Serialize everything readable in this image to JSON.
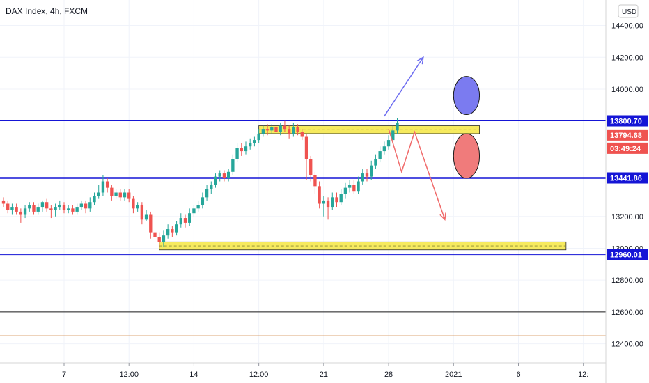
{
  "header": {
    "title": "DAX Index, 4h, FXCM",
    "currency": "USD"
  },
  "colors": {
    "up": "#26a69a",
    "down": "#ef5350",
    "zone_fill": "#f5e642",
    "zone_stroke": "#2a2a2a",
    "blue_line": "#1515d6",
    "black_line": "#1a1a1a",
    "orange_line": "#d08a4a",
    "ellipse_blue": "#7b7bf0",
    "ellipse_red": "#f07b7b",
    "arrow_blue": "#6a6af0",
    "arrow_red": "#f06a6a",
    "tag_blue": "#1515d6",
    "tag_price": "#ef5350"
  },
  "price_tags": {
    "level_high": "13800.70",
    "last_price": "13794.68",
    "countdown": "03:49:24",
    "level_mid": "13441.86",
    "level_low": "12960.01"
  },
  "chart_data": {
    "type": "candlestick",
    "title": "DAX Index, 4h, FXCM",
    "ylim": [
      12280,
      14560
    ],
    "y_ticks": [
      "14400.00",
      "14200.00",
      "14000.00",
      "13200.00",
      "13000.00",
      "12800.00",
      "12600.00",
      "12400.00"
    ],
    "y_tick_values": [
      14400,
      14200,
      14000,
      13200,
      13000,
      12800,
      12600,
      12400
    ],
    "x_ticks": [
      "7",
      "12:00",
      "14",
      "12:00",
      "21",
      "28",
      "2021",
      "6",
      "12:"
    ],
    "x_tick_bars": [
      14,
      29,
      44,
      59,
      74,
      89,
      104,
      119,
      134
    ],
    "bar_count_visible": 140,
    "candles": [
      [
        13300,
        13280,
        13320,
        13260
      ],
      [
        13280,
        13240,
        13300,
        13220
      ],
      [
        13240,
        13260,
        13280,
        13210
      ],
      [
        13260,
        13230,
        13280,
        13210
      ],
      [
        13230,
        13210,
        13250,
        13160
      ],
      [
        13210,
        13250,
        13270,
        13190
      ],
      [
        13250,
        13270,
        13290,
        13230
      ],
      [
        13270,
        13230,
        13290,
        13210
      ],
      [
        13230,
        13260,
        13280,
        13210
      ],
      [
        13260,
        13290,
        13300,
        13230
      ],
      [
        13290,
        13250,
        13310,
        13230
      ],
      [
        13250,
        13240,
        13270,
        13190
      ],
      [
        13240,
        13260,
        13280,
        13200
      ],
      [
        13260,
        13270,
        13300,
        13240
      ],
      [
        13270,
        13240,
        13290,
        13220
      ],
      [
        13240,
        13250,
        13270,
        13220
      ],
      [
        13250,
        13230,
        13270,
        13210
      ],
      [
        13230,
        13260,
        13280,
        13210
      ],
      [
        13260,
        13280,
        13300,
        13240
      ],
      [
        13280,
        13250,
        13300,
        13220
      ],
      [
        13250,
        13290,
        13320,
        13230
      ],
      [
        13290,
        13330,
        13350,
        13270
      ],
      [
        13330,
        13350,
        13400,
        13310
      ],
      [
        13350,
        13420,
        13460,
        13330
      ],
      [
        13420,
        13380,
        13440,
        13350
      ],
      [
        13380,
        13330,
        13400,
        13300
      ],
      [
        13330,
        13350,
        13370,
        13310
      ],
      [
        13350,
        13320,
        13370,
        13300
      ],
      [
        13320,
        13350,
        13370,
        13300
      ],
      [
        13350,
        13310,
        13370,
        13290
      ],
      [
        13310,
        13250,
        13330,
        13220
      ],
      [
        13250,
        13270,
        13290,
        13230
      ],
      [
        13270,
        13180,
        13290,
        13150
      ],
      [
        13180,
        13210,
        13240,
        13170
      ],
      [
        13210,
        13100,
        13230,
        13060
      ],
      [
        13100,
        13070,
        13130,
        13000
      ],
      [
        13070,
        13040,
        13100,
        13010
      ],
      [
        13040,
        13080,
        13110,
        13010
      ],
      [
        13080,
        13120,
        13150,
        13060
      ],
      [
        13120,
        13100,
        13140,
        13070
      ],
      [
        13100,
        13150,
        13170,
        13080
      ],
      [
        13150,
        13190,
        13220,
        13130
      ],
      [
        13190,
        13160,
        13210,
        13130
      ],
      [
        13160,
        13220,
        13250,
        13140
      ],
      [
        13220,
        13250,
        13270,
        13200
      ],
      [
        13250,
        13270,
        13300,
        13230
      ],
      [
        13270,
        13320,
        13350,
        13250
      ],
      [
        13320,
        13370,
        13400,
        13300
      ],
      [
        13370,
        13400,
        13420,
        13340
      ],
      [
        13400,
        13450,
        13470,
        13380
      ],
      [
        13450,
        13470,
        13490,
        13420
      ],
      [
        13470,
        13440,
        13490,
        13420
      ],
      [
        13440,
        13480,
        13500,
        13420
      ],
      [
        13480,
        13560,
        13590,
        13460
      ],
      [
        13560,
        13630,
        13660,
        13540
      ],
      [
        13630,
        13610,
        13660,
        13580
      ],
      [
        13610,
        13640,
        13670,
        13590
      ],
      [
        13640,
        13660,
        13690,
        13620
      ],
      [
        13660,
        13680,
        13700,
        13640
      ],
      [
        13680,
        13720,
        13750,
        13660
      ],
      [
        13720,
        13750,
        13770,
        13700
      ],
      [
        13750,
        13740,
        13780,
        13710
      ],
      [
        13740,
        13760,
        13780,
        13720
      ],
      [
        13760,
        13730,
        13780,
        13710
      ],
      [
        13730,
        13770,
        13790,
        13710
      ],
      [
        13770,
        13750,
        13800,
        13730
      ],
      [
        13750,
        13720,
        13770,
        13690
      ],
      [
        13720,
        13760,
        13790,
        13700
      ],
      [
        13760,
        13730,
        13780,
        13710
      ],
      [
        13730,
        13700,
        13750,
        13680
      ],
      [
        13700,
        13560,
        13720,
        13430
      ],
      [
        13560,
        13460,
        13580,
        13420
      ],
      [
        13460,
        13390,
        13480,
        13340
      ],
      [
        13390,
        13280,
        13420,
        13250
      ],
      [
        13280,
        13300,
        13330,
        13200
      ],
      [
        13300,
        13260,
        13320,
        13180
      ],
      [
        13260,
        13320,
        13350,
        13240
      ],
      [
        13320,
        13290,
        13350,
        13260
      ],
      [
        13290,
        13340,
        13370,
        13270
      ],
      [
        13340,
        13380,
        13410,
        13310
      ],
      [
        13380,
        13400,
        13430,
        13350
      ],
      [
        13400,
        13360,
        13430,
        13340
      ],
      [
        13360,
        13420,
        13450,
        13340
      ],
      [
        13420,
        13470,
        13500,
        13400
      ],
      [
        13470,
        13450,
        13500,
        13420
      ],
      [
        13450,
        13520,
        13550,
        13430
      ],
      [
        13520,
        13560,
        13590,
        13500
      ],
      [
        13560,
        13610,
        13640,
        13540
      ],
      [
        13610,
        13640,
        13670,
        13590
      ],
      [
        13640,
        13680,
        13710,
        13620
      ],
      [
        13680,
        13740,
        13770,
        13660
      ],
      [
        13740,
        13790,
        13820,
        13720
      ]
    ]
  },
  "annotations": {
    "zones": [
      {
        "top": 13770,
        "bottom": 13720,
        "from_bar": 59,
        "to_bar": 110
      },
      {
        "top": 13040,
        "bottom": 12990,
        "from_bar": 36,
        "to_bar": 130
      }
    ],
    "hlines": [
      {
        "price": 13800.7,
        "kind": "blue_thin"
      },
      {
        "price": 13441.86,
        "kind": "blue_thick"
      },
      {
        "price": 12960.01,
        "kind": "blue_thin"
      },
      {
        "price": 12600,
        "kind": "black"
      },
      {
        "price": 12450,
        "kind": "orange"
      }
    ],
    "ellipses": [
      {
        "cx_bar": 107,
        "cy": 13960,
        "rx_bars": 3,
        "ry": 120,
        "kind": "blue"
      },
      {
        "cx_bar": 107,
        "cy": 13580,
        "rx_bars": 3,
        "ry": 140,
        "kind": "red"
      }
    ],
    "arrow_up": [
      [
        88,
        13830
      ],
      [
        97,
        14200
      ]
    ],
    "arrow_down": [
      [
        89,
        13750
      ],
      [
        92,
        13480
      ],
      [
        95,
        13730
      ],
      [
        102,
        13180
      ]
    ]
  }
}
